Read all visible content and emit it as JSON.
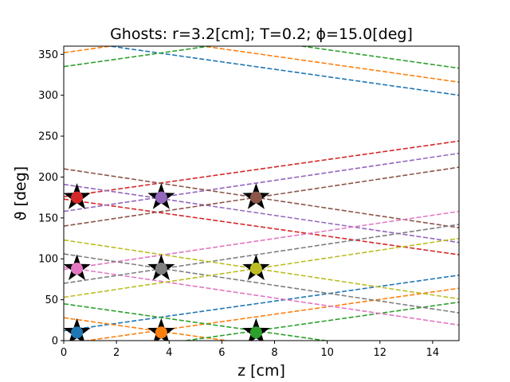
{
  "chart_data": {
    "type": "line",
    "title": "Ghosts: r=3.2[cm]; T=0.2; ϕ=15.0[deg]",
    "xlabel": "z [cm]",
    "ylabel": "ϑ [deg]",
    "xlim": [
      0,
      15
    ],
    "ylim": [
      0,
      360
    ],
    "xticks": [
      0,
      2,
      4,
      6,
      8,
      10,
      12,
      14
    ],
    "yticks": [
      0,
      50,
      100,
      150,
      200,
      250,
      300,
      350
    ],
    "grid": false,
    "legend": "none",
    "line_style": "dashed",
    "series": [
      {
        "color": "#1f77b4",
        "x": [
          0,
          15
        ],
        "y": [
          12,
          80
        ]
      },
      {
        "color": "#1f77b4",
        "x": [
          0,
          15
        ],
        "y": [
          368,
          300
        ]
      },
      {
        "color": "#ff7f0e",
        "x": [
          0,
          15
        ],
        "y": [
          -4,
          64
        ]
      },
      {
        "color": "#ff7f0e",
        "x": [
          0,
          15
        ],
        "y": [
          28,
          -40
        ]
      },
      {
        "color": "#ff7f0e",
        "x": [
          0,
          15
        ],
        "y": [
          352,
          420
        ]
      },
      {
        "color": "#ff7f0e",
        "x": [
          0,
          15
        ],
        "y": [
          384,
          316
        ]
      },
      {
        "color": "#2ca02c",
        "x": [
          0,
          15
        ],
        "y": [
          -21,
          47
        ]
      },
      {
        "color": "#2ca02c",
        "x": [
          0,
          15
        ],
        "y": [
          45,
          -23
        ]
      },
      {
        "color": "#2ca02c",
        "x": [
          0,
          15
        ],
        "y": [
          335,
          403
        ]
      },
      {
        "color": "#2ca02c",
        "x": [
          0,
          15
        ],
        "y": [
          401,
          333
        ]
      },
      {
        "color": "#d62728",
        "x": [
          0,
          15
        ],
        "y": [
          176,
          244
        ]
      },
      {
        "color": "#d62728",
        "x": [
          0,
          15
        ],
        "y": [
          173,
          105
        ]
      },
      {
        "color": "#9467bd",
        "x": [
          0,
          15
        ],
        "y": [
          158,
          229
        ]
      },
      {
        "color": "#9467bd",
        "x": [
          0,
          15
        ],
        "y": [
          191,
          120
        ]
      },
      {
        "color": "#8c564b",
        "x": [
          0,
          15
        ],
        "y": [
          140,
          212
        ]
      },
      {
        "color": "#8c564b",
        "x": [
          0,
          15
        ],
        "y": [
          210,
          138
        ]
      },
      {
        "color": "#e377c2",
        "x": [
          0,
          15
        ],
        "y": [
          87,
          158
        ]
      },
      {
        "color": "#e377c2",
        "x": [
          0,
          15
        ],
        "y": [
          90,
          19
        ]
      },
      {
        "color": "#7f7f7f",
        "x": [
          0,
          15
        ],
        "y": [
          70,
          142
        ]
      },
      {
        "color": "#7f7f7f",
        "x": [
          0,
          15
        ],
        "y": [
          106,
          34
        ]
      },
      {
        "color": "#bcbd22",
        "x": [
          0,
          15
        ],
        "y": [
          53,
          125
        ]
      },
      {
        "color": "#bcbd22",
        "x": [
          0,
          15
        ],
        "y": [
          123,
          51
        ]
      }
    ],
    "stars": {
      "x": [
        0.5,
        3.7,
        7.3
      ],
      "y": [
        10,
        88,
        175
      ]
    },
    "points": [
      {
        "x": 0.5,
        "y": 10,
        "color": "#1f77b4"
      },
      {
        "x": 3.7,
        "y": 10,
        "color": "#ff7f0e"
      },
      {
        "x": 7.3,
        "y": 10,
        "color": "#2ca02c"
      },
      {
        "x": 0.5,
        "y": 175,
        "color": "#d62728"
      },
      {
        "x": 3.7,
        "y": 175,
        "color": "#9467bd"
      },
      {
        "x": 7.3,
        "y": 175,
        "color": "#8c564b"
      },
      {
        "x": 0.5,
        "y": 88,
        "color": "#e377c2"
      },
      {
        "x": 3.7,
        "y": 88,
        "color": "#7f7f7f"
      },
      {
        "x": 7.3,
        "y": 88,
        "color": "#bcbd22"
      }
    ]
  }
}
